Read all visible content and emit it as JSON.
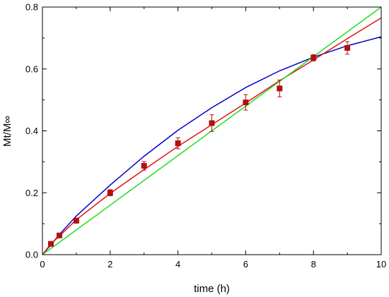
{
  "chart_data": {
    "type": "scatter",
    "xlabel": "time (h)",
    "ylabel": "Mt/M∞",
    "xlim": [
      0,
      10
    ],
    "ylim": [
      0,
      0.8
    ],
    "x_ticks": [
      "0",
      "2",
      "4",
      "6",
      "8",
      "10"
    ],
    "y_ticks": [
      "0.0",
      "0.2",
      "0.4",
      "0.6",
      "0.8"
    ],
    "grid": false,
    "points": {
      "color": "#b01010",
      "x": [
        0.25,
        0.5,
        1,
        2,
        3,
        4,
        5,
        6,
        7,
        8,
        9
      ],
      "y": [
        0.035,
        0.062,
        0.11,
        0.2,
        0.287,
        0.36,
        0.425,
        0.492,
        0.537,
        0.636,
        0.668
      ],
      "err": [
        0.006,
        0.006,
        0.008,
        0.01,
        0.014,
        0.018,
        0.027,
        0.025,
        0.027,
        0.01,
        0.02
      ]
    },
    "curves": [
      {
        "color": "#0000cc",
        "x": [
          0,
          0.25,
          0.5,
          1,
          2,
          3,
          4,
          5,
          6,
          7,
          8,
          9,
          10
        ],
        "y": [
          0,
          0.032,
          0.065,
          0.125,
          0.225,
          0.318,
          0.402,
          0.475,
          0.54,
          0.594,
          0.638,
          0.675,
          0.704
        ]
      },
      {
        "color": "#e01010",
        "x": [
          0,
          0.25,
          0.5,
          1,
          2,
          3,
          4,
          5,
          6,
          7,
          8,
          9,
          10
        ],
        "y": [
          0,
          0.035,
          0.06,
          0.113,
          0.198,
          0.275,
          0.35,
          0.42,
          0.49,
          0.562,
          0.629,
          0.698,
          0.765
        ]
      },
      {
        "color": "#22dd22",
        "x": [
          0,
          10
        ],
        "y": [
          0,
          0.8
        ]
      }
    ]
  }
}
